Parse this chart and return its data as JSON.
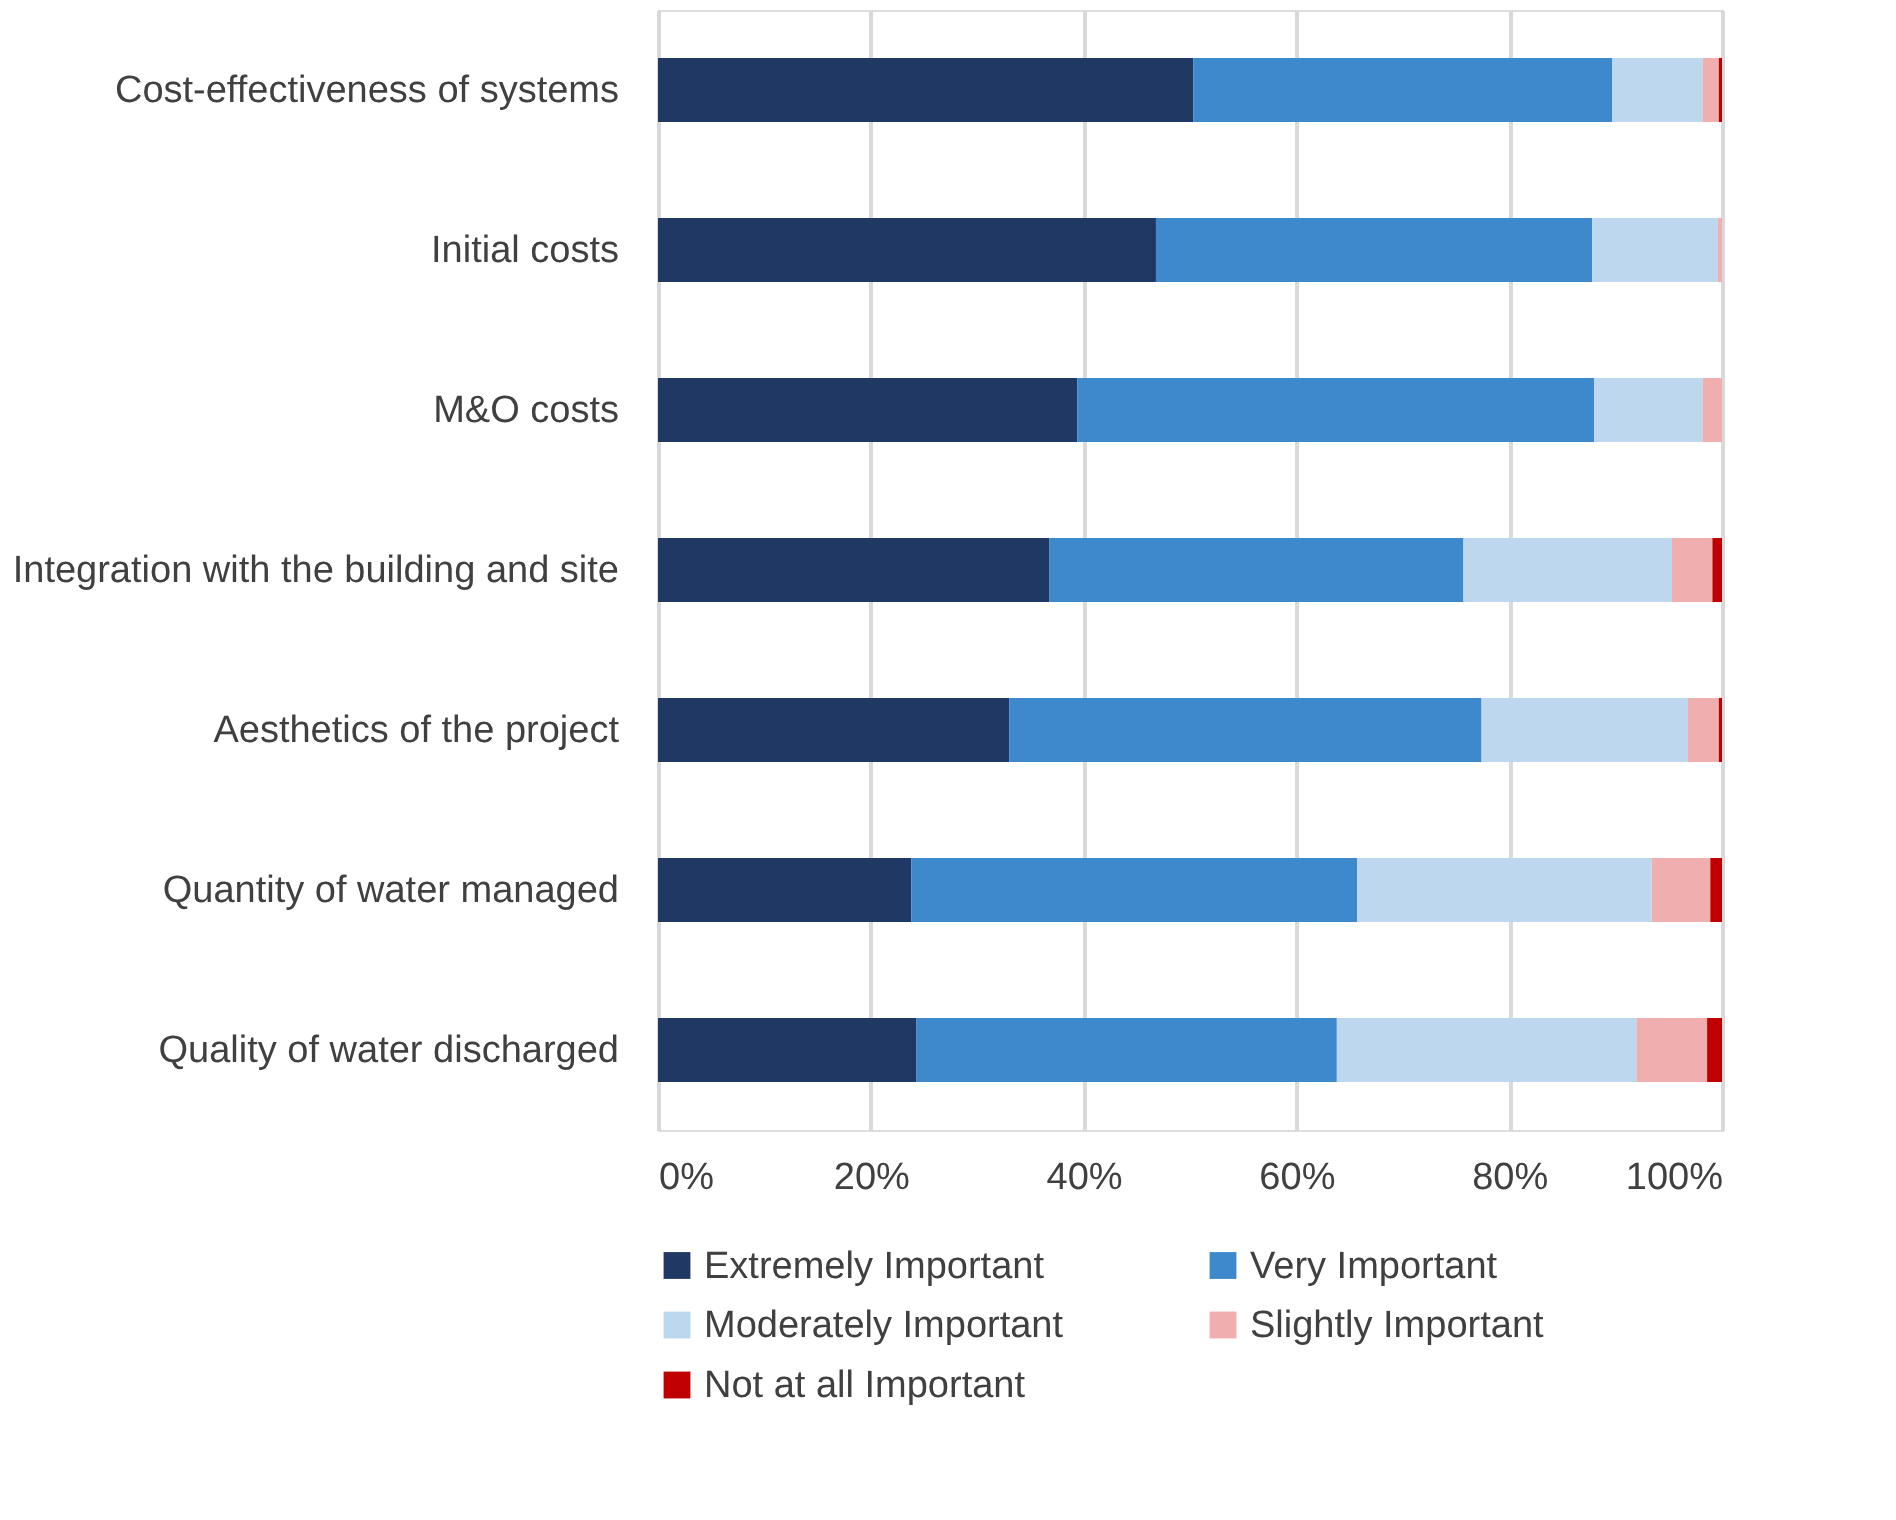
{
  "chart_data": {
    "type": "bar",
    "orientation": "horizontal",
    "stacked": true,
    "categories": [
      "Cost-effectiveness of systems",
      "Initial costs",
      "M&O costs",
      "Integration with the building and site",
      "Aesthetics of the project",
      "Quantity of water managed",
      "Quality of water discharged"
    ],
    "series": [
      {
        "name": "Extremely Important",
        "color": "#1f3864",
        "values": [
          50.3,
          46.8,
          39.4,
          36.8,
          33.0,
          23.8,
          24.3
        ]
      },
      {
        "name": "Very Important",
        "color": "#3e88cc",
        "values": [
          39.4,
          41.0,
          48.6,
          38.9,
          44.4,
          41.9,
          39.5
        ]
      },
      {
        "name": "Moderately Important",
        "color": "#bdd7ee",
        "values": [
          8.5,
          11.8,
          10.2,
          19.6,
          19.4,
          27.7,
          28.2
        ]
      },
      {
        "name": "Slightly Important",
        "color": "#f0aeae",
        "values": [
          1.5,
          0.4,
          1.8,
          3.8,
          2.9,
          5.5,
          6.6
        ]
      },
      {
        "name": "Not at all Important",
        "color": "#c00000",
        "values": [
          0.3,
          0,
          0,
          0.9,
          0.3,
          1.1,
          1.4
        ]
      }
    ],
    "xlim": [
      0,
      100
    ],
    "xticks": [
      {
        "value": 0,
        "label": "0%"
      },
      {
        "value": 20,
        "label": "20%"
      },
      {
        "value": 40,
        "label": "40%"
      },
      {
        "value": 60,
        "label": "60%"
      },
      {
        "value": 80,
        "label": "80%"
      },
      {
        "value": 100,
        "label": "100%"
      }
    ],
    "grid": "x",
    "legend": "bottom"
  }
}
